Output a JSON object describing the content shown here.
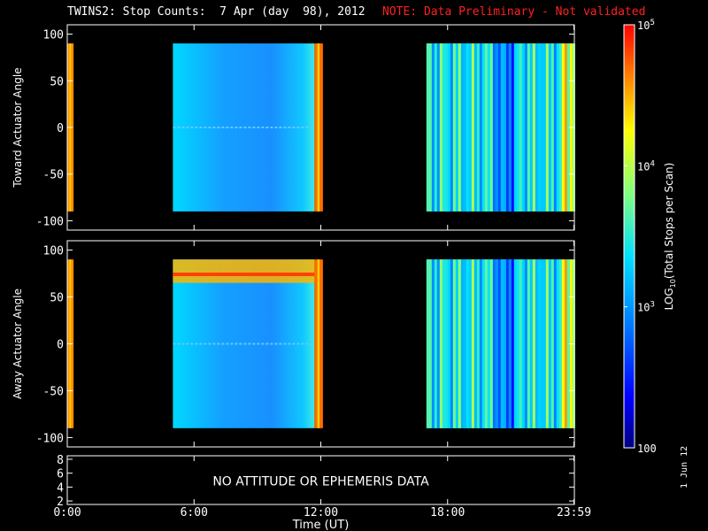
{
  "title": {
    "main": "TWINS2: Stop Counts:  7 Apr (day  98), 2012",
    "note": "NOTE: Data Preliminary - Not validated",
    "note_color": "#ff2020"
  },
  "footer_date": "1 Jun 12",
  "attitude_message": "NO ATTITUDE OR EPHEMERIS DATA",
  "time_axis": {
    "label": "Time (UT)",
    "ticks": [
      {
        "h": 0,
        "label": "0:00"
      },
      {
        "h": 6,
        "label": "6:00"
      },
      {
        "h": 12,
        "label": "12:00"
      },
      {
        "h": 18,
        "label": "18:00"
      },
      {
        "h": 23.98,
        "label": "23:59"
      }
    ]
  },
  "colorbar": {
    "label": "LOG10(Total Stops per Scan)",
    "ticks": [
      {
        "v": 100,
        "label": "100"
      },
      {
        "v": 1000,
        "label": "10^3"
      },
      {
        "v": 10000,
        "label": "10^4"
      },
      {
        "v": 100000,
        "label": "10^5"
      }
    ],
    "range": [
      100,
      100000
    ],
    "scale": "log"
  },
  "chart_data": [
    {
      "type": "heatmap",
      "ylabel": "Toward Actuator Angle",
      "xlabel": "",
      "xlim": [
        0,
        24
      ],
      "ylim": [
        -110,
        110
      ],
      "yticks": [
        -100,
        -50,
        0,
        50,
        100
      ],
      "data_ylim": [
        -90,
        90
      ],
      "segments": [
        {
          "start": 0.0,
          "end": 0.3,
          "level": "high",
          "value": 40000
        },
        {
          "start": 5.0,
          "end": 11.7,
          "level": "low",
          "value": 1000
        },
        {
          "start": 11.7,
          "end": 12.1,
          "level": "high",
          "value": 50000
        },
        {
          "start": 17.0,
          "end": 23.98,
          "level": "mixed",
          "value": 2500
        }
      ]
    },
    {
      "type": "heatmap",
      "ylabel": "Away Actuator Angle",
      "xlabel": "",
      "xlim": [
        0,
        24
      ],
      "ylim": [
        -110,
        110
      ],
      "yticks": [
        -100,
        -50,
        0,
        50,
        100
      ],
      "data_ylim": [
        -90,
        90
      ],
      "segments": [
        {
          "start": 0.0,
          "end": 0.3,
          "level": "high",
          "value": 40000
        },
        {
          "start": 5.0,
          "end": 11.7,
          "level": "low",
          "value": 1000,
          "band": {
            "angle_min": 65,
            "angle_max": 90,
            "value": 30000
          }
        },
        {
          "start": 11.7,
          "end": 12.1,
          "level": "high",
          "value": 50000
        },
        {
          "start": 17.0,
          "end": 23.98,
          "level": "mixed",
          "value": 2500
        }
      ]
    },
    {
      "type": "line",
      "ylabel": "",
      "ylim": [
        1.5,
        8.5
      ],
      "yticks": [
        2,
        4,
        6,
        8
      ],
      "series": []
    }
  ]
}
